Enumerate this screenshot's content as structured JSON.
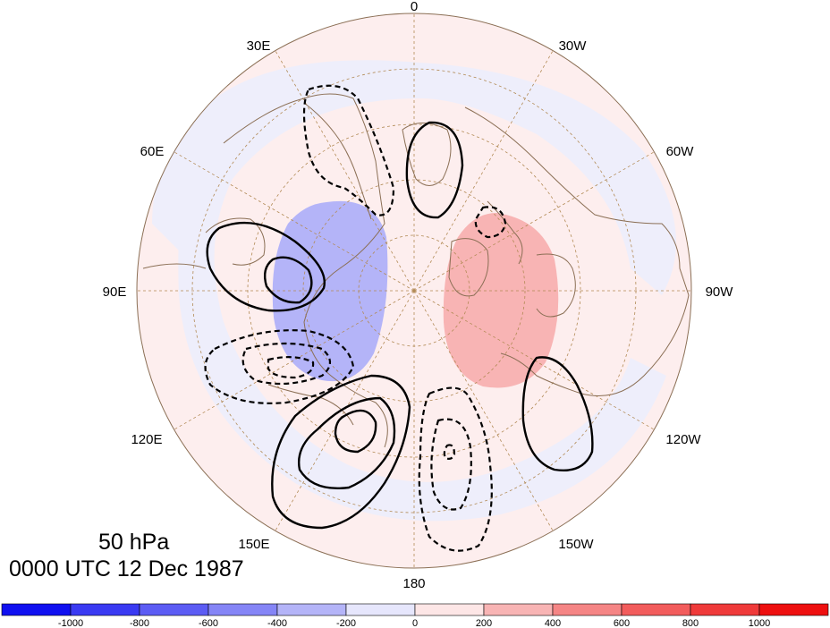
{
  "map": {
    "projection": "polar stereographic, North Pole centered",
    "longitude_labels": [
      "0",
      "30W",
      "60W",
      "90W",
      "120W",
      "150W",
      "180",
      "150E",
      "120E",
      "90E",
      "60E",
      "30E"
    ],
    "level": "50 hPa",
    "time": "0000 UTC 12 Dec 1987"
  },
  "colorbar": {
    "ticks": [
      "-1000",
      "-800",
      "-600",
      "-400",
      "-200",
      "0",
      "200",
      "400",
      "600",
      "800",
      "1000"
    ],
    "colors": [
      "#1010f0",
      "#3a3af2",
      "#5c5cf4",
      "#8585f6",
      "#b4b4f8",
      "#e6e6fc",
      "#fde6e6",
      "#f8b4b4",
      "#f58585",
      "#f25c5c",
      "#ef3a3a",
      "#ee1010"
    ]
  },
  "colors": {
    "coast": "#8b6f55",
    "grid": "#b28a55",
    "contour": "#000000"
  }
}
